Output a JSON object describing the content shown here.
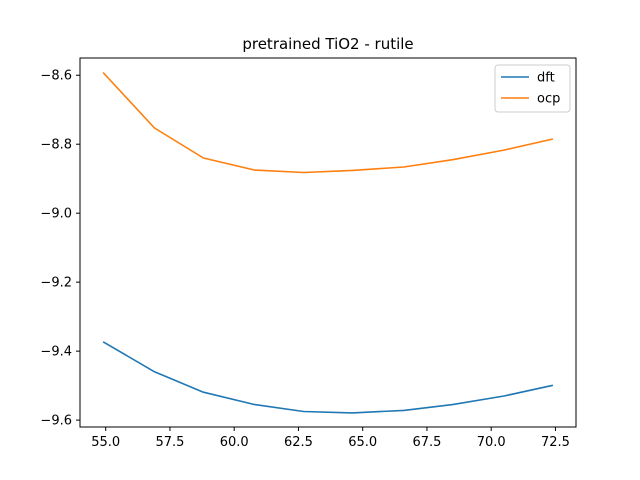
{
  "chart_data": {
    "type": "line",
    "title": "pretrained TiO2 - rutile",
    "xlabel": "",
    "ylabel": "",
    "x": [
      54.9,
      56.9,
      58.8,
      60.8,
      62.7,
      64.6,
      66.6,
      68.5,
      70.5,
      72.4
    ],
    "series": [
      {
        "name": "dft",
        "color": "#1f77b4",
        "values": [
          -9.373,
          -9.46,
          -9.519,
          -9.555,
          -9.575,
          -9.579,
          -9.572,
          -9.555,
          -9.53,
          -9.499
        ]
      },
      {
        "name": "ocp",
        "color": "#ff7f0e",
        "values": [
          -8.592,
          -8.753,
          -8.84,
          -8.875,
          -8.882,
          -8.876,
          -8.866,
          -8.845,
          -8.817,
          -8.785
        ]
      }
    ],
    "xlim": [
      54.0,
      73.3
    ],
    "ylim": [
      -9.62,
      -8.55
    ],
    "xticks": [
      55.0,
      57.5,
      60.0,
      62.5,
      65.0,
      67.5,
      70.0,
      72.5
    ],
    "xtick_labels": [
      "55.0",
      "57.5",
      "60.0",
      "62.5",
      "65.0",
      "67.5",
      "70.0",
      "72.5"
    ],
    "yticks": [
      -9.6,
      -9.4,
      -9.2,
      -9.0,
      -8.8,
      -8.6
    ],
    "ytick_labels": [
      "−9.6",
      "−9.4",
      "−9.2",
      "−9.0",
      "−8.8",
      "−8.6"
    ],
    "grid": false,
    "legend_position": "top-right"
  }
}
